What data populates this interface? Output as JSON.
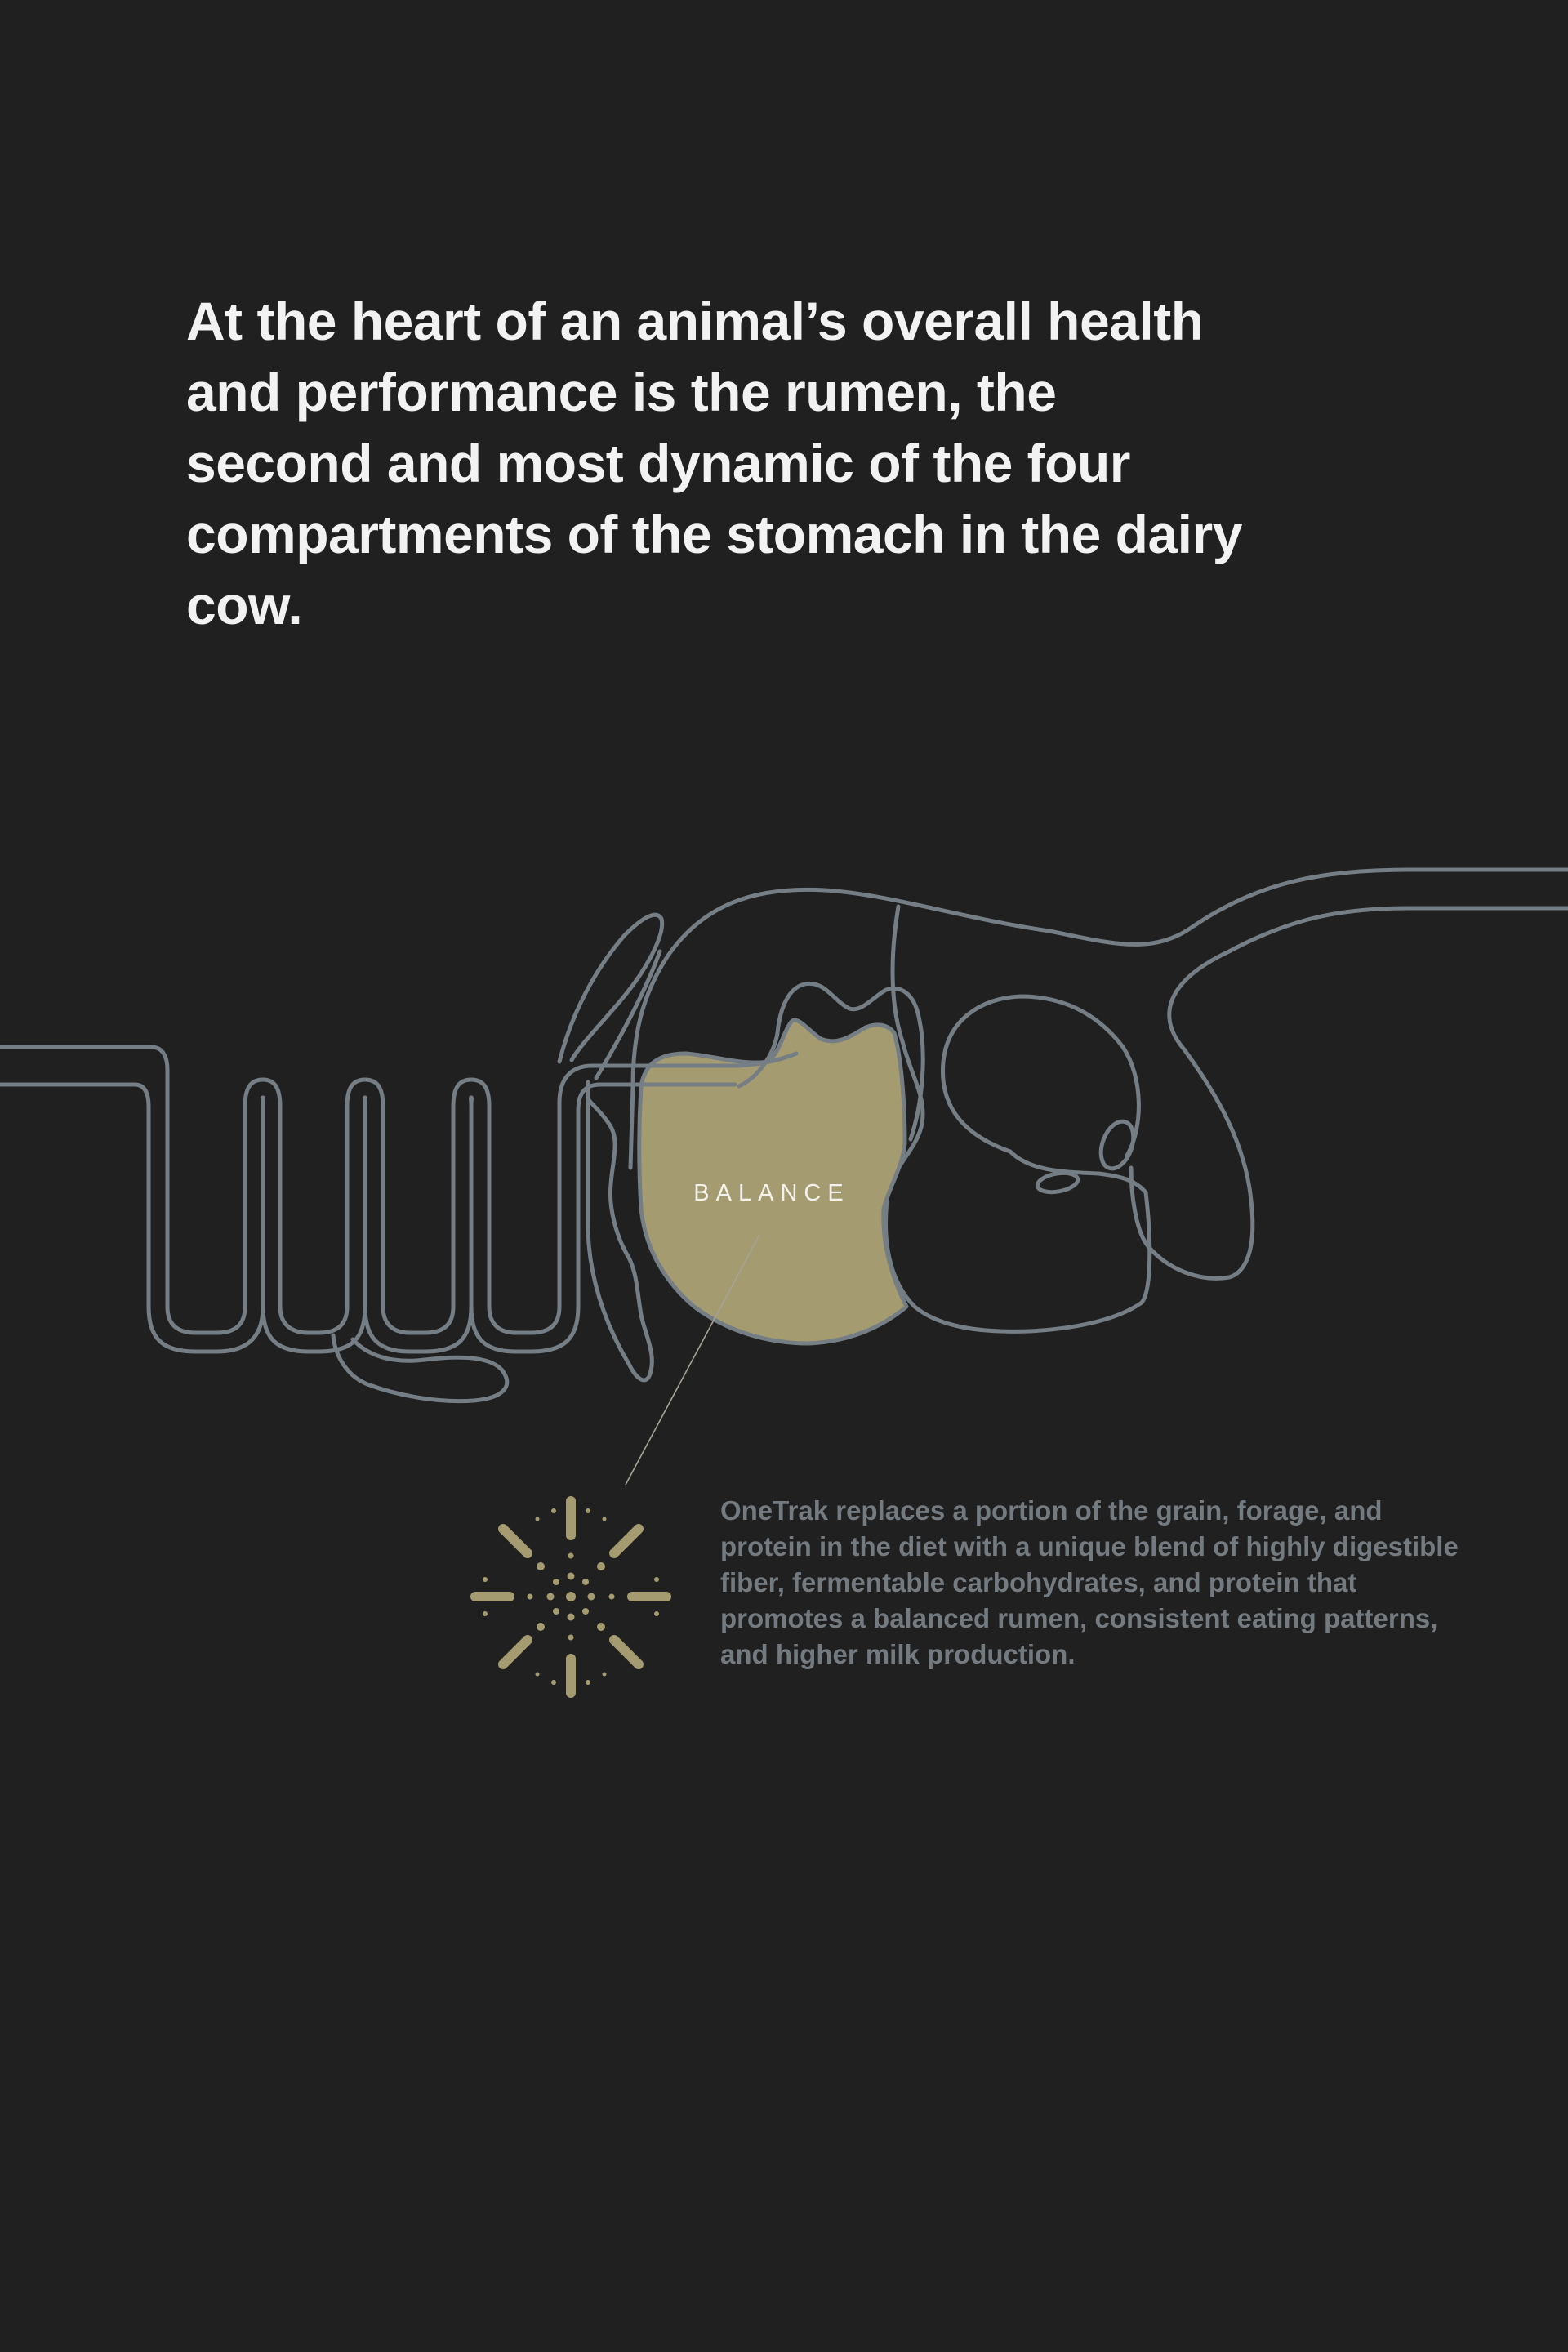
{
  "headline": "At the heart of an animal’s overall health and performance is the rumen, the second and most dynamic of the four compartments of the stomach in the dairy cow.",
  "diagram": {
    "highlight_label": "BALANCE",
    "colors": {
      "background": "#202020",
      "outline": "#757d85",
      "highlight_fill": "#a49c70",
      "icon": "#a49c70",
      "headline_text": "#f2f2f2",
      "body_text": "#737a80"
    },
    "icon": "burst-icon"
  },
  "callout": {
    "text": "OneTrak replaces a portion of the grain, forage, and protein in the diet with a unique blend of highly digestible fiber, fermentable carbohydrates, and protein that promotes a balanced rumen, consistent eating patterns, and higher milk production."
  }
}
